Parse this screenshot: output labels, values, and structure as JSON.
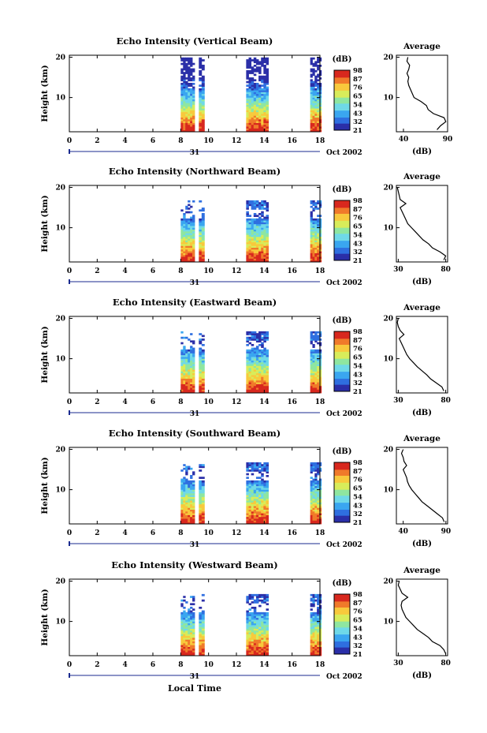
{
  "chart_data": [
    {
      "type": "heatmap",
      "title": "Echo Intensity (Vertical Beam)",
      "ylabel": "Height (km)",
      "x_ticks": [
        0,
        2,
        4,
        6,
        8,
        10,
        12,
        14,
        16,
        18
      ],
      "y_ticks": [
        10,
        20
      ],
      "xlim": [
        0,
        18
      ],
      "ylim": [
        1.5,
        20.5
      ],
      "date_label": "31",
      "month_label": "Oct 2002",
      "data_spans_hours": [
        [
          8.0,
          9.0
        ],
        [
          9.3,
          9.7
        ],
        [
          12.7,
          14.3
        ],
        [
          17.3,
          18.1
        ]
      ],
      "colorbar": {
        "unit": "(dB)",
        "ticks": [
          21,
          32,
          43,
          54,
          65,
          76,
          87,
          98
        ],
        "range": [
          21,
          98
        ]
      },
      "profile": {
        "title": "Average",
        "xlabel": "(dB)",
        "x_ticks": [
          40,
          90
        ],
        "xlim": [
          32,
          90
        ],
        "y_ticks": [
          10,
          20
        ],
        "ylim": [
          1.5,
          20.5
        ],
        "heights": [
          2,
          3,
          4,
          5,
          6,
          7,
          8,
          9,
          10,
          11,
          12,
          13,
          14,
          15,
          16,
          17,
          18,
          19,
          20
        ],
        "values": [
          78,
          82,
          88,
          86,
          74,
          68,
          66,
          60,
          52,
          50,
          48,
          46,
          45,
          46,
          44,
          46,
          47,
          44,
          45
        ]
      }
    },
    {
      "type": "heatmap",
      "title": "Echo Intensity (Northward Beam)",
      "ylabel": "Height (km)",
      "x_ticks": [
        0,
        2,
        4,
        6,
        8,
        10,
        12,
        14,
        16,
        18
      ],
      "y_ticks": [
        10,
        20
      ],
      "xlim": [
        0,
        18
      ],
      "ylim": [
        1.5,
        20.5
      ],
      "date_label": "31",
      "month_label": "Oct 2002",
      "data_spans_hours": [
        [
          8.0,
          9.0
        ],
        [
          9.3,
          9.7
        ],
        [
          12.7,
          14.3
        ],
        [
          17.3,
          18.1
        ]
      ],
      "colorbar": {
        "unit": "(dB)",
        "ticks": [
          21,
          32,
          43,
          54,
          65,
          76,
          87,
          98
        ],
        "range": [
          21,
          98
        ]
      },
      "profile": {
        "title": "Average",
        "xlabel": "(dB)",
        "x_ticks": [
          30,
          80
        ],
        "xlim": [
          28,
          82
        ],
        "y_ticks": [
          10,
          20
        ],
        "ylim": [
          1.5,
          20.5
        ],
        "heights": [
          2,
          3,
          4,
          5,
          6,
          7,
          8,
          9,
          10,
          11,
          12,
          13,
          14,
          15,
          16,
          17,
          18,
          19,
          20
        ],
        "values": [
          78,
          80,
          74,
          66,
          62,
          56,
          52,
          48,
          44,
          40,
          38,
          36,
          34,
          32,
          38,
          32,
          31,
          30,
          29
        ]
      }
    },
    {
      "type": "heatmap",
      "title": "Echo Intensity (Eastward Beam)",
      "ylabel": "Height (km)",
      "x_ticks": [
        0,
        2,
        4,
        6,
        8,
        10,
        12,
        14,
        16,
        18
      ],
      "y_ticks": [
        10,
        20
      ],
      "xlim": [
        0,
        18
      ],
      "ylim": [
        1.5,
        20.5
      ],
      "date_label": "31",
      "month_label": "Oct 2002",
      "data_spans_hours": [
        [
          8.0,
          9.0
        ],
        [
          9.3,
          9.7
        ],
        [
          12.7,
          14.3
        ],
        [
          17.3,
          18.1
        ]
      ],
      "colorbar": {
        "unit": "(dB)",
        "ticks": [
          21,
          32,
          43,
          54,
          65,
          76,
          87,
          98
        ],
        "range": [
          21,
          98
        ]
      },
      "profile": {
        "title": "Average",
        "xlabel": "(dB)",
        "x_ticks": [
          30,
          80
        ],
        "xlim": [
          28,
          82
        ],
        "y_ticks": [
          10,
          20
        ],
        "ylim": [
          1.5,
          20.5
        ],
        "heights": [
          2,
          3,
          4,
          5,
          6,
          7,
          8,
          9,
          10,
          11,
          12,
          13,
          14,
          15,
          16,
          17,
          18,
          19,
          20
        ],
        "values": [
          78,
          76,
          70,
          64,
          60,
          55,
          50,
          46,
          42,
          39,
          37,
          35,
          33,
          31,
          36,
          32,
          30,
          29,
          30
        ]
      }
    },
    {
      "type": "heatmap",
      "title": "Echo Intensity (Southward Beam)",
      "ylabel": "Height (km)",
      "x_ticks": [
        0,
        2,
        4,
        6,
        8,
        10,
        12,
        14,
        16,
        18
      ],
      "y_ticks": [
        10,
        20
      ],
      "xlim": [
        0,
        18
      ],
      "ylim": [
        1.5,
        20.5
      ],
      "date_label": "31",
      "month_label": "Oct 2002",
      "data_spans_hours": [
        [
          8.0,
          9.0
        ],
        [
          9.3,
          9.7
        ],
        [
          12.7,
          14.3
        ],
        [
          17.3,
          18.1
        ]
      ],
      "colorbar": {
        "unit": "(dB)",
        "ticks": [
          21,
          32,
          43,
          54,
          65,
          76,
          87,
          98
        ],
        "range": [
          21,
          98
        ]
      },
      "profile": {
        "title": "Average",
        "xlabel": "(dB)",
        "x_ticks": [
          40,
          90
        ],
        "xlim": [
          32,
          92
        ],
        "y_ticks": [
          10,
          20
        ],
        "ylim": [
          1.5,
          20.5
        ],
        "heights": [
          2,
          3,
          4,
          5,
          6,
          7,
          8,
          9,
          10,
          11,
          12,
          13,
          14,
          15,
          16,
          17,
          18,
          19,
          20
        ],
        "values": [
          88,
          86,
          80,
          74,
          68,
          62,
          58,
          54,
          50,
          47,
          45,
          44,
          42,
          40,
          44,
          41,
          40,
          38,
          40
        ]
      }
    },
    {
      "type": "heatmap",
      "title": "Echo Intensity (Westward Beam)",
      "ylabel": "Height (km)",
      "xlabel": "Local Time",
      "x_ticks": [
        0,
        2,
        4,
        6,
        8,
        10,
        12,
        14,
        16,
        18
      ],
      "y_ticks": [
        10,
        20
      ],
      "xlim": [
        0,
        18
      ],
      "ylim": [
        1.5,
        20.5
      ],
      "date_label": "31",
      "month_label": "Oct 2002",
      "data_spans_hours": [
        [
          8.0,
          9.0
        ],
        [
          9.3,
          9.7
        ],
        [
          12.7,
          14.3
        ],
        [
          17.3,
          18.1
        ]
      ],
      "colorbar": {
        "unit": "(dB)",
        "ticks": [
          21,
          32,
          43,
          54,
          65,
          76,
          87,
          98
        ],
        "range": [
          21,
          98
        ]
      },
      "profile": {
        "title": "Average",
        "xlabel": "(dB)",
        "x_ticks": [
          30,
          80
        ],
        "xlim": [
          28,
          82
        ],
        "y_ticks": [
          10,
          20
        ],
        "ylim": [
          1.5,
          20.5
        ],
        "heights": [
          2,
          3,
          4,
          5,
          6,
          7,
          8,
          9,
          10,
          11,
          12,
          13,
          14,
          15,
          16,
          17,
          18,
          19,
          20
        ],
        "values": [
          80,
          78,
          74,
          66,
          62,
          56,
          50,
          46,
          42,
          38,
          36,
          34,
          33,
          34,
          40,
          34,
          32,
          30,
          31
        ]
      }
    }
  ],
  "colors": {
    "colormap": [
      "#2b2fa8",
      "#2f6fe0",
      "#3aa6f0",
      "#6fd9e8",
      "#8fe6a0",
      "#d8ec5a",
      "#f8c93c",
      "#f07a2a",
      "#d8281e"
    ],
    "axis": "#000000",
    "date_marker": "#1a2a8f"
  }
}
